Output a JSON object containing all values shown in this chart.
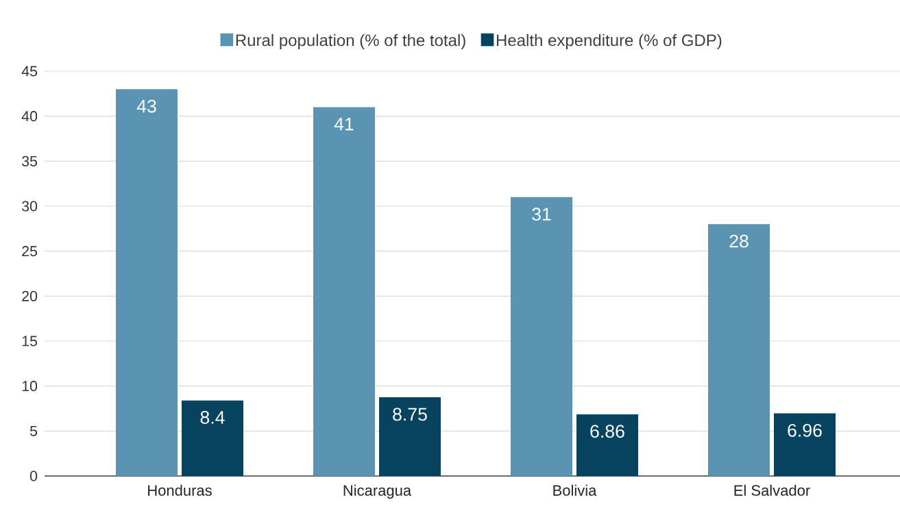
{
  "chart_data": {
    "type": "bar",
    "categories": [
      "Honduras",
      "Nicaragua",
      "Bolivia",
      "El Salvador"
    ],
    "series": [
      {
        "name": "Rural population (% of the total)",
        "color": "#5b93b3",
        "values": [
          43,
          41,
          31,
          28
        ]
      },
      {
        "name": "Health expenditure (% of GDP)",
        "color": "#07425f",
        "values": [
          8.4,
          8.75,
          6.86,
          6.96
        ]
      }
    ],
    "ylim": [
      0,
      45
    ],
    "yticks": [
      0,
      5,
      10,
      15,
      20,
      25,
      30,
      35,
      40,
      45
    ],
    "grid": "y",
    "legend": "top",
    "data_labels": true
  }
}
